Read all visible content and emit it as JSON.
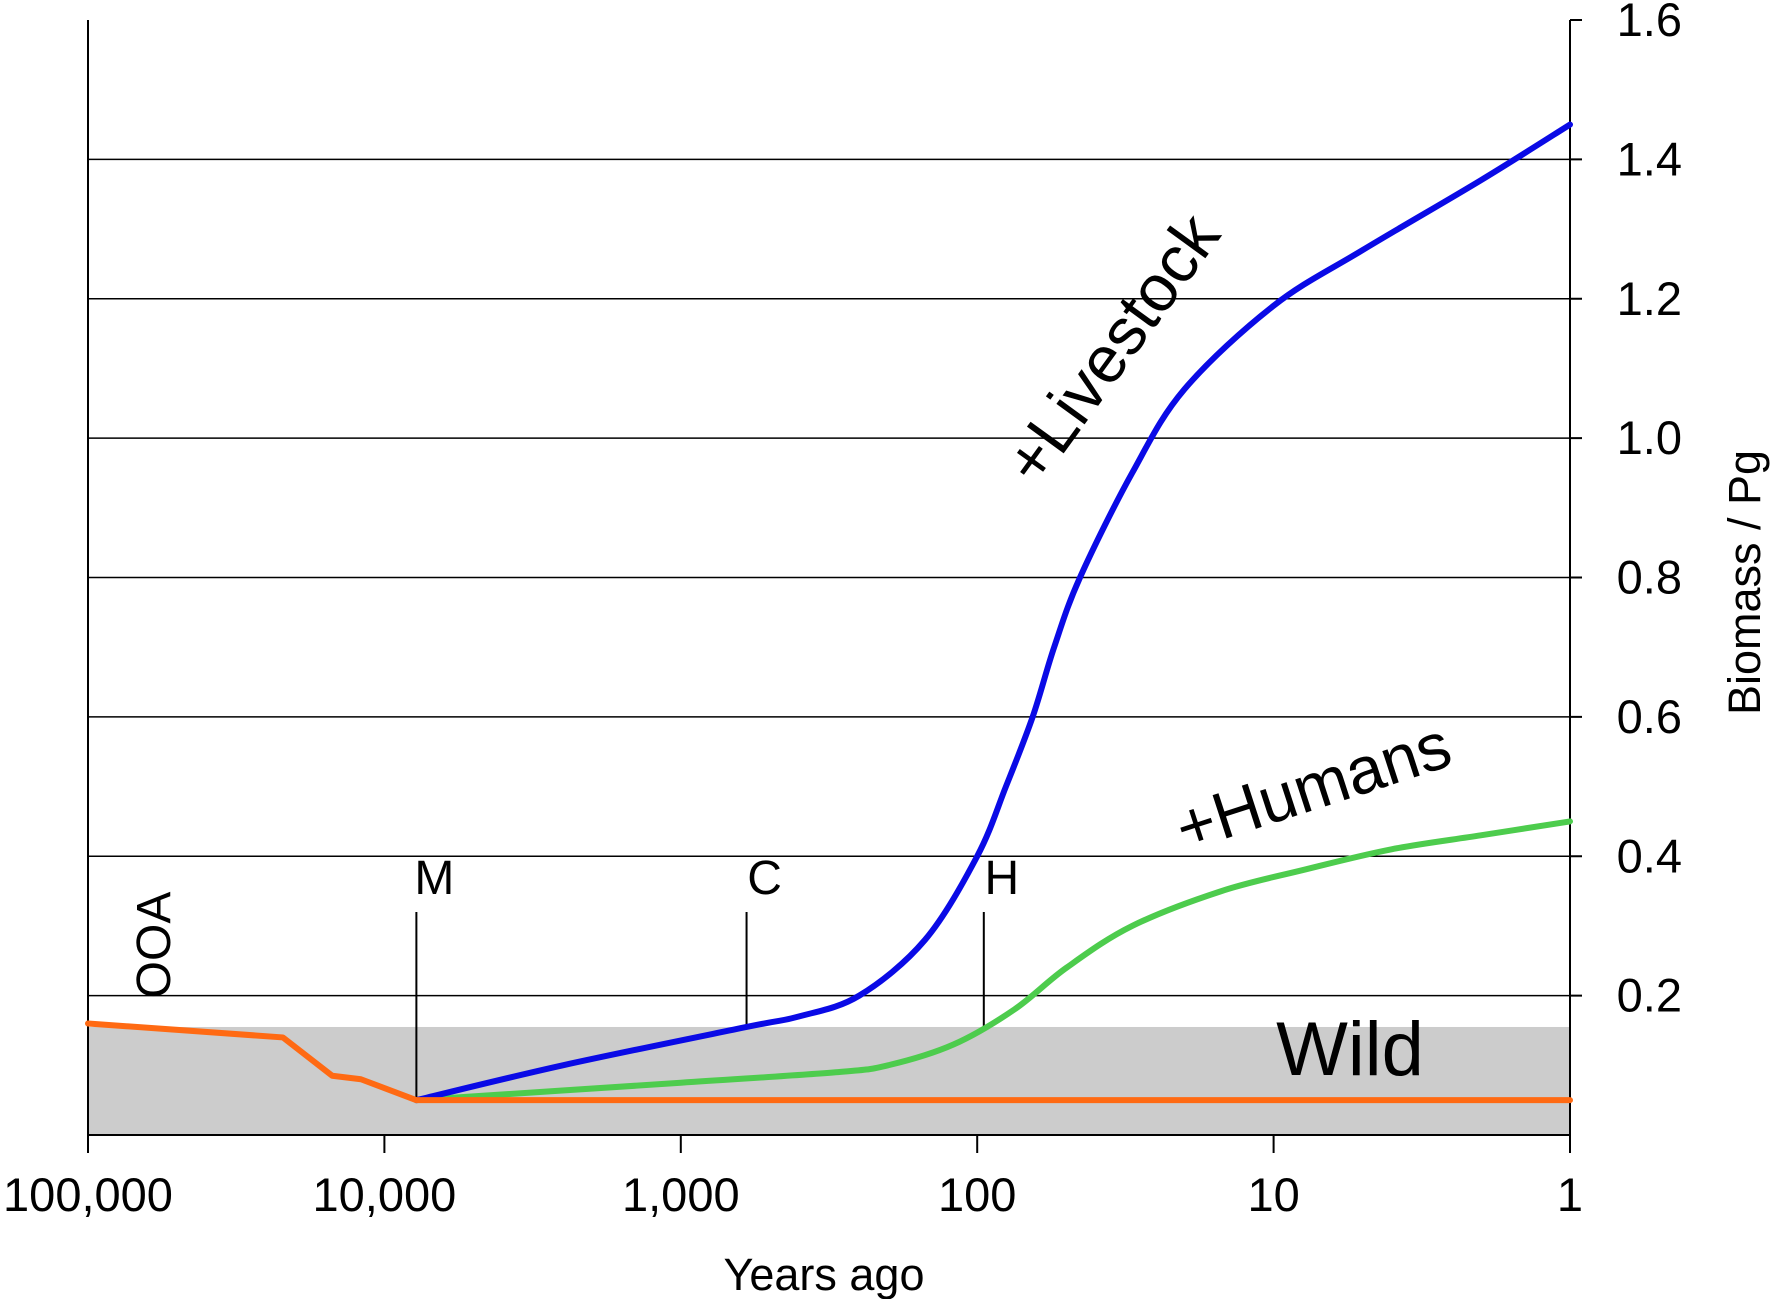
{
  "chart_data": {
    "type": "line",
    "title": "",
    "xlabel": "Years ago",
    "ylabel": "Biomass / Pg",
    "x_scale": "log",
    "x_reversed": true,
    "xlim": [
      100000,
      1
    ],
    "ylim": [
      0,
      1.6
    ],
    "y_axis_position": "right",
    "grid": {
      "horizontal": true,
      "vertical": false
    },
    "legend": "none",
    "x_ticks": [
      100000,
      10000,
      1000,
      100,
      10,
      1
    ],
    "x_tick_labels": [
      "100,000",
      "10,000",
      "1,000",
      "100",
      "10",
      "1"
    ],
    "y_ticks": [
      0.2,
      0.4,
      0.6,
      0.8,
      1.0,
      1.2,
      1.4,
      1.6
    ],
    "y_tick_labels": [
      "0.2",
      "0.4",
      "0.6",
      "0.8",
      "1.0",
      "1.2",
      "1.4",
      "1.6"
    ],
    "shaded_band": {
      "label": "Wild",
      "y_range": [
        0,
        0.155
      ],
      "color": "#cccccc"
    },
    "events": [
      {
        "label": "OOA",
        "x": 60000,
        "rotated": true
      },
      {
        "label": "M",
        "x": 7800,
        "y_line_top": 0.32
      },
      {
        "label": "C",
        "x": 600,
        "y_line_top": 0.32
      },
      {
        "label": "H",
        "x": 95,
        "y_line_top": 0.32
      }
    ],
    "series": [
      {
        "name": "Wild",
        "color": "#ff6a13",
        "points": [
          [
            100000,
            0.16
          ],
          [
            22000,
            0.14
          ],
          [
            15000,
            0.085
          ],
          [
            12000,
            0.08
          ],
          [
            7800,
            0.05
          ],
          [
            1,
            0.05
          ]
        ]
      },
      {
        "name": "+Livestock",
        "color": "#0a0ae6",
        "points": [
          [
            7800,
            0.05
          ],
          [
            2500,
            0.1
          ],
          [
            600,
            0.155
          ],
          [
            400,
            0.17
          ],
          [
            250,
            0.2
          ],
          [
            150,
            0.28
          ],
          [
            100,
            0.4
          ],
          [
            80,
            0.5
          ],
          [
            65,
            0.6
          ],
          [
            55,
            0.7
          ],
          [
            45,
            0.8
          ],
          [
            30,
            0.95
          ],
          [
            20,
            1.07
          ],
          [
            10,
            1.19
          ],
          [
            5,
            1.27
          ],
          [
            2,
            1.37
          ],
          [
            1,
            1.45
          ]
        ]
      },
      {
        "name": "+Humans",
        "color": "#4dcc4d",
        "points": [
          [
            7800,
            0.05
          ],
          [
            1000,
            0.075
          ],
          [
            300,
            0.09
          ],
          [
            200,
            0.1
          ],
          [
            120,
            0.13
          ],
          [
            75,
            0.18
          ],
          [
            50,
            0.24
          ],
          [
            30,
            0.3
          ],
          [
            15,
            0.35
          ],
          [
            8,
            0.38
          ],
          [
            4,
            0.41
          ],
          [
            2,
            0.43
          ],
          [
            1,
            0.45
          ]
        ]
      }
    ],
    "annotations": [
      {
        "text": "+Livestock",
        "series": "+Livestock",
        "rotation_deg": -54
      },
      {
        "text": "+Humans",
        "series": "+Humans",
        "rotation_deg": -18
      },
      {
        "text": "Wild",
        "series": "Wild",
        "rotation_deg": 0
      }
    ]
  }
}
